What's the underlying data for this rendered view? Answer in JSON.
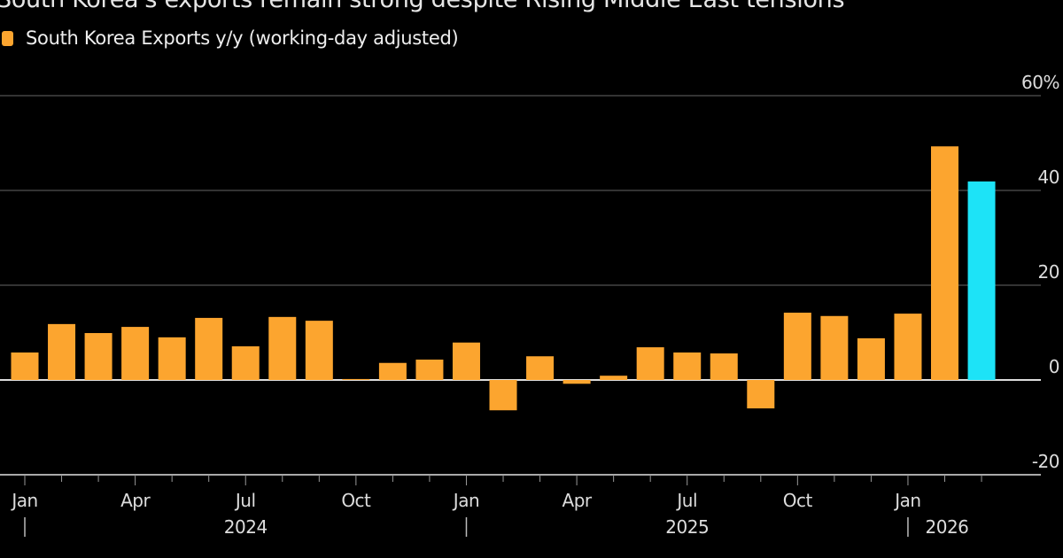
{
  "chart_data": {
    "type": "bar",
    "title": "South Korea's exports remain strong despite Rising Middle East tensions",
    "legend": [
      {
        "label": "South Korea Exports y/y (working-day adjusted)",
        "color": "#fca52f"
      }
    ],
    "legend_placement": "top-left",
    "categories": [
      "2024-01",
      "2024-02",
      "2024-03",
      "2024-04",
      "2024-05",
      "2024-06",
      "2024-07",
      "2024-08",
      "2024-09",
      "2024-10",
      "2024-11",
      "2024-12",
      "2025-01",
      "2025-02",
      "2025-03",
      "2025-04",
      "2025-05",
      "2025-06",
      "2025-07",
      "2025-08",
      "2025-09",
      "2025-10",
      "2025-11",
      "2025-12",
      "2026-01",
      "2026-02",
      "2026-03"
    ],
    "values": [
      5.8,
      11.8,
      9.9,
      11.2,
      9.0,
      13.1,
      7.1,
      13.3,
      12.5,
      0.2,
      3.6,
      4.3,
      7.9,
      -6.4,
      5.0,
      -0.8,
      0.9,
      6.9,
      5.8,
      5.6,
      -6.0,
      14.2,
      13.5,
      8.8,
      14.0,
      49.3,
      41.9
    ],
    "highlight_last_color": "#1de3f7",
    "bar_color": "#fca52f",
    "ylim": [
      -20,
      60
    ],
    "yticks": [
      {
        "v": 60,
        "label": "60%"
      },
      {
        "v": 40,
        "label": "40"
      },
      {
        "v": 20,
        "label": "20"
      },
      {
        "v": 0,
        "label": "0"
      },
      {
        "v": -20,
        "label": "-20"
      }
    ],
    "xticks": [
      {
        "i": 0,
        "label": "Jan"
      },
      {
        "i": 3,
        "label": "Apr"
      },
      {
        "i": 6,
        "label": "Jul"
      },
      {
        "i": 9,
        "label": "Oct"
      },
      {
        "i": 12,
        "label": "Jan"
      },
      {
        "i": 15,
        "label": "Apr"
      },
      {
        "i": 18,
        "label": "Jul"
      },
      {
        "i": 21,
        "label": "Oct"
      },
      {
        "i": 24,
        "label": "Jan"
      }
    ],
    "years": [
      {
        "i": 6,
        "label": "2024"
      },
      {
        "i": 18,
        "label": "2025"
      },
      {
        "i": 25,
        "label": "2026"
      }
    ],
    "year_separators": [
      0,
      12,
      24
    ],
    "grid": true
  }
}
